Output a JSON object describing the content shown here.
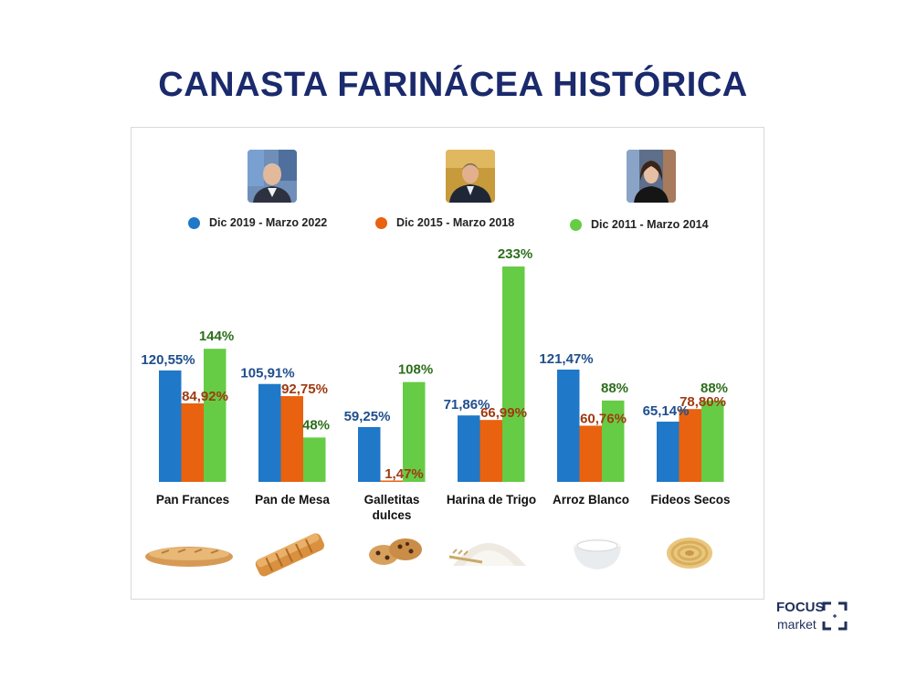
{
  "title": "CANASTA FARINÁCEA HISTÓRICA",
  "legend": [
    {
      "label": "Dic 2019 - Marzo 2022",
      "color": "#1f78c8"
    },
    {
      "label": "Dic 2015 - Marzo 2018",
      "color": "#e8620f"
    },
    {
      "label": "Dic 2011 - Marzo 2014",
      "color": "#66cc45"
    }
  ],
  "colors": {
    "series_fill": [
      "#1f78c8",
      "#e8620f",
      "#66cc45"
    ],
    "label_text": [
      "#1f4e8c",
      "#a03a10",
      "#2c6e1a"
    ],
    "title": "#1a2a6c"
  },
  "chart_data": {
    "type": "bar",
    "categories": [
      "Pan Frances",
      "Pan de Mesa",
      "Galletitas dulces",
      "Harina de Trigo",
      "Arroz Blanco",
      "Fideos Secos"
    ],
    "series": [
      {
        "name": "Dic 2019 - Marzo 2022",
        "values": [
          120.55,
          105.91,
          59.25,
          71.86,
          121.47,
          65.14
        ],
        "labels": [
          "120,55%",
          "105,91%",
          "59,25%",
          "71,86%",
          "121,47%",
          "65,14%"
        ]
      },
      {
        "name": "Dic 2015 - Marzo 2018",
        "values": [
          84.92,
          92.75,
          1.47,
          66.99,
          60.76,
          78.8
        ],
        "labels": [
          "84,92%",
          "92,75%",
          "1,47%",
          "66,99%",
          "60,76%",
          "78,80%"
        ]
      },
      {
        "name": "Dic 2011 - Marzo 2014",
        "values": [
          144,
          48,
          108,
          233,
          88,
          88
        ],
        "labels": [
          "144%",
          "48%",
          "108%",
          "233%",
          "88%",
          "88%"
        ]
      }
    ],
    "ylim": [
      0,
      240
    ],
    "legend_position": "top",
    "grid": false
  },
  "logo": {
    "line1": "FOCUS",
    "line2": "market"
  }
}
